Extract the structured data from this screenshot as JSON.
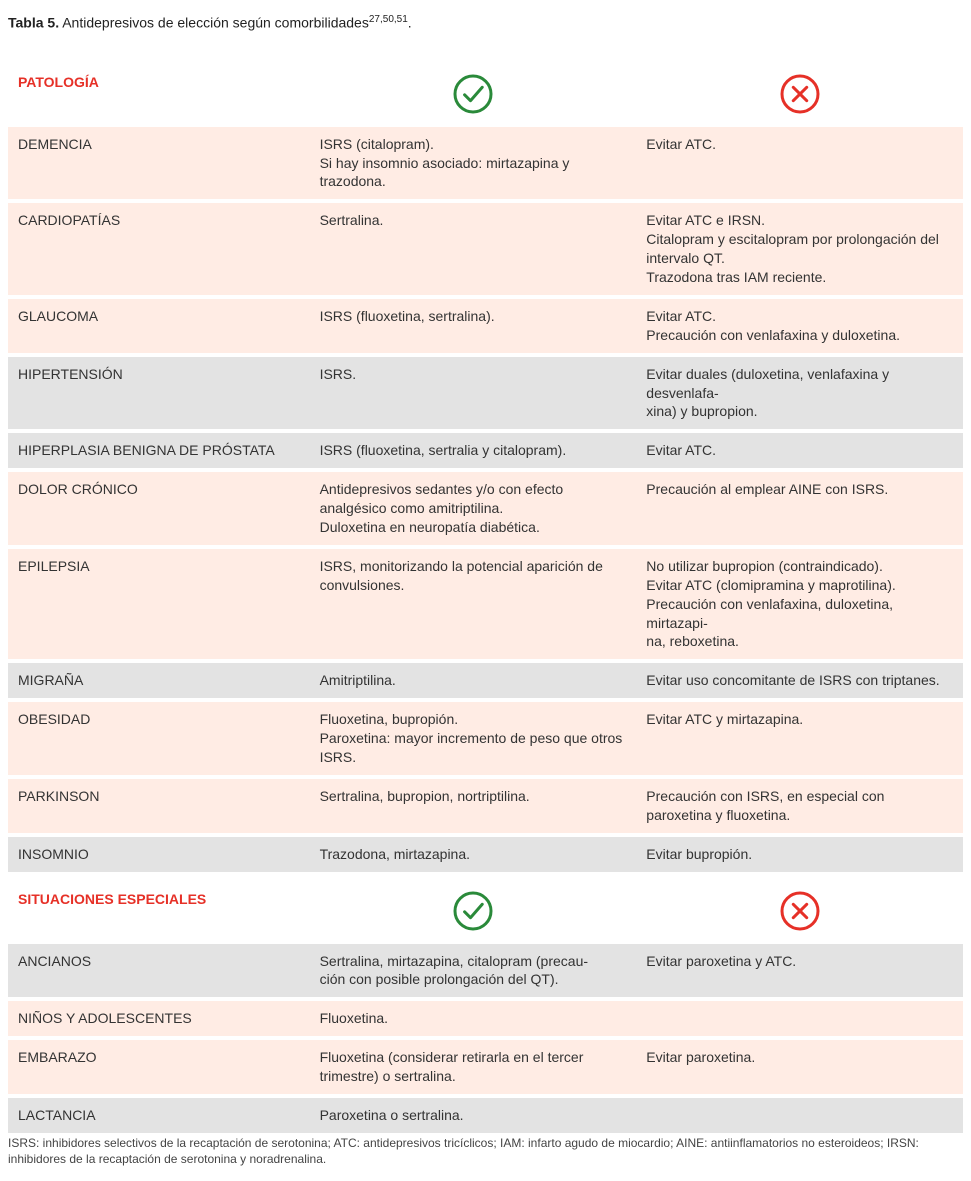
{
  "caption": {
    "label": "Tabla 5.",
    "text": "Antidepresivos de elección según comorbilidades",
    "sup": "27,50,51",
    "end": "."
  },
  "icons": {
    "check": {
      "stroke": "#2a8a3a",
      "radius": 18,
      "strokeWidth": 3
    },
    "cross": {
      "stroke": "#e63027",
      "radius": 18,
      "strokeWidth": 3
    }
  },
  "colors": {
    "headerText": "#e63027",
    "rowPale": "#ffece4",
    "rowGrey": "#e3e3e3",
    "background": "#ffffff"
  },
  "section1": {
    "header": "PATOLOGÍA",
    "rows": [
      {
        "label": "DEMENCIA",
        "yes": "ISRS (citalopram).\nSi hay insomnio asociado: mirtazapina y trazodona.",
        "no": "Evitar ATC.",
        "shade": "pale"
      },
      {
        "label": "CARDIOPATÍAS",
        "yes": "Sertralina.",
        "no": "Evitar ATC e IRSN.\nCitalopram y escitalopram por prolongación del intervalo QT.\nTrazodona tras IAM reciente.",
        "shade": "pale"
      },
      {
        "label": "GLAUCOMA",
        "yes": "ISRS (fluoxetina, sertralina).",
        "no": "Evitar ATC.\nPrecaución con venlafaxina y duloxetina.",
        "shade": "pale"
      },
      {
        "label": "HIPERTENSIÓN",
        "yes": "ISRS.",
        "no": "Evitar duales (duloxetina, venlafaxina y desvenlafa-\nxina) y bupropion.",
        "shade": "grey"
      },
      {
        "label": "HIPERPLASIA BENIGNA DE PRÓSTATA",
        "yes": "ISRS (fluoxetina, sertralia y citalopram).",
        "no": "Evitar ATC.",
        "shade": "grey"
      },
      {
        "label": "DOLOR CRÓNICO",
        "yes": "Antidepresivos sedantes y/o con efecto analgésico como amitriptilina.\nDuloxetina en neuropatía diabética.",
        "no": "Precaución al emplear AINE con ISRS.",
        "shade": "pale"
      },
      {
        "label": "EPILEPSIA",
        "yes": "ISRS, monitorizando la potencial aparición de convulsiones.",
        "no": "No utilizar bupropion (contraindicado).\nEvitar ATC (clomipramina y maprotilina).\nPrecaución con venlafaxina, duloxetina, mirtazapi-\nna, reboxetina.",
        "shade": "pale"
      },
      {
        "label": "MIGRAÑA",
        "yes": "Amitriptilina.",
        "no": "Evitar uso concomitante de ISRS con triptanes.",
        "shade": "grey"
      },
      {
        "label": "OBESIDAD",
        "yes": "Fluoxetina, bupropión.\nParoxetina: mayor incremento de peso que otros ISRS.",
        "no": "Evitar ATC y mirtazapina.",
        "shade": "pale"
      },
      {
        "label": "PARKINSON",
        "yes": "Sertralina, bupropion, nortriptilina.",
        "no": "Precaución con ISRS, en especial con paroxetina y fluoxetina.",
        "shade": "pale"
      },
      {
        "label": "INSOMNIO",
        "yes": "Trazodona, mirtazapina.",
        "no": "Evitar bupropión.",
        "shade": "grey"
      }
    ]
  },
  "section2": {
    "header": "SITUACIONES ESPECIALES",
    "rows": [
      {
        "label": "ANCIANOS",
        "yes": "Sertralina, mirtazapina, citalopram (precau-\nción con posible prolongación del QT).",
        "no": "Evitar paroxetina y ATC.",
        "shade": "grey"
      },
      {
        "label": "NIÑOS Y ADOLESCENTES",
        "yes": "Fluoxetina.",
        "no": "",
        "shade": "pale"
      },
      {
        "label": "EMBARAZO",
        "yes": "Fluoxetina (considerar retirarla en el tercer trimestre) o sertralina.",
        "no": "Evitar paroxetina.",
        "shade": "pale"
      },
      {
        "label": "LACTANCIA",
        "yes": "Paroxetina o sertralina.",
        "no": "",
        "shade": "grey"
      }
    ]
  },
  "footnote": "ISRS: inhibidores selectivos de la recaptación de serotonina; ATC: antidepresivos tricíclicos; IAM: infarto agudo de miocardio; AINE: antiinflamatorios no esteroideos; IRSN: inhibidores de la recaptación de serotonina y noradrenalina."
}
